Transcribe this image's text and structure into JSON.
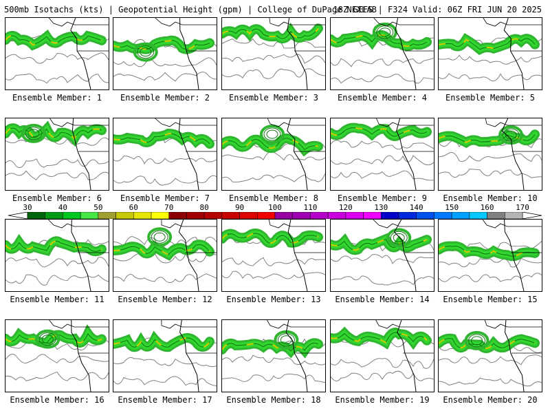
{
  "header": {
    "title_left": "500mb Isotachs (kts) | Geopotential Height (gpm) | College of DuPage NEXLAB",
    "title_right": "18Z GEFS | F324 Valid: 06Z FRI JUN 20 2025"
  },
  "colors": {
    "jet_green": "#2fb52f",
    "jet_light_green": "#31d62f",
    "jet_dark_green": "#117511",
    "jet_core_yellow": "#d2c800",
    "jet_core_red": "#c81e1e",
    "height_contour": "#808080",
    "coastline": "#000000"
  },
  "colorbar": {
    "ticks": [
      "30",
      "40",
      "50",
      "60",
      "70",
      "80",
      "90",
      "100",
      "110",
      "120",
      "130",
      "140",
      "150",
      "160",
      "170"
    ],
    "bins": [
      {
        "from": 30,
        "to": 35,
        "color": "#00640a"
      },
      {
        "from": 35,
        "to": 40,
        "color": "#009a14"
      },
      {
        "from": 40,
        "to": 45,
        "color": "#00c81e"
      },
      {
        "from": 45,
        "to": 50,
        "color": "#46e646"
      },
      {
        "from": 50,
        "to": 55,
        "color": "#a0a032"
      },
      {
        "from": 55,
        "to": 60,
        "color": "#c8c800"
      },
      {
        "from": 60,
        "to": 65,
        "color": "#e6e600"
      },
      {
        "from": 65,
        "to": 70,
        "color": "#ffff00"
      },
      {
        "from": 70,
        "to": 75,
        "color": "#8b0000"
      },
      {
        "from": 75,
        "to": 80,
        "color": "#a00000"
      },
      {
        "from": 80,
        "to": 85,
        "color": "#b40000"
      },
      {
        "from": 85,
        "to": 90,
        "color": "#c80000"
      },
      {
        "from": 90,
        "to": 95,
        "color": "#dc0000"
      },
      {
        "from": 95,
        "to": 100,
        "color": "#f00000"
      },
      {
        "from": 100,
        "to": 105,
        "color": "#9600a0"
      },
      {
        "from": 105,
        "to": 110,
        "color": "#a000b4"
      },
      {
        "from": 110,
        "to": 115,
        "color": "#b400c8"
      },
      {
        "from": 115,
        "to": 120,
        "color": "#c800dc"
      },
      {
        "from": 120,
        "to": 125,
        "color": "#dc00f0"
      },
      {
        "from": 125,
        "to": 130,
        "color": "#f000ff"
      },
      {
        "from": 130,
        "to": 135,
        "color": "#0000c8"
      },
      {
        "from": 135,
        "to": 140,
        "color": "#0028dc"
      },
      {
        "from": 140,
        "to": 145,
        "color": "#0050f0"
      },
      {
        "from": 145,
        "to": 150,
        "color": "#0078ff"
      },
      {
        "from": 150,
        "to": 155,
        "color": "#00a0ff"
      },
      {
        "from": 155,
        "to": 160,
        "color": "#00c8ff"
      },
      {
        "from": 160,
        "to": 165,
        "color": "#808080"
      },
      {
        "from": 165,
        "to": 170,
        "color": "#b4b4b4"
      }
    ]
  },
  "members": [
    {
      "label": "Ensemble Member: 1",
      "number": 1
    },
    {
      "label": "Ensemble Member: 2",
      "number": 2
    },
    {
      "label": "Ensemble Member: 3",
      "number": 3
    },
    {
      "label": "Ensemble Member: 4",
      "number": 4
    },
    {
      "label": "Ensemble Member: 5",
      "number": 5
    },
    {
      "label": "Ensemble Member: 6",
      "number": 6
    },
    {
      "label": "Ensemble Member: 7",
      "number": 7
    },
    {
      "label": "Ensemble Member: 8",
      "number": 8
    },
    {
      "label": "Ensemble Member: 9",
      "number": 9
    },
    {
      "label": "Ensemble Member: 10",
      "number": 10
    },
    {
      "label": "Ensemble Member: 11",
      "number": 11
    },
    {
      "label": "Ensemble Member: 12",
      "number": 12
    },
    {
      "label": "Ensemble Member: 13",
      "number": 13
    },
    {
      "label": "Ensemble Member: 14",
      "number": 14
    },
    {
      "label": "Ensemble Member: 15",
      "number": 15
    },
    {
      "label": "Ensemble Member: 16",
      "number": 16
    },
    {
      "label": "Ensemble Member: 17",
      "number": 17
    },
    {
      "label": "Ensemble Member: 18",
      "number": 18
    },
    {
      "label": "Ensemble Member: 19",
      "number": 19
    },
    {
      "label": "Ensemble Member: 20",
      "number": 20
    }
  ]
}
